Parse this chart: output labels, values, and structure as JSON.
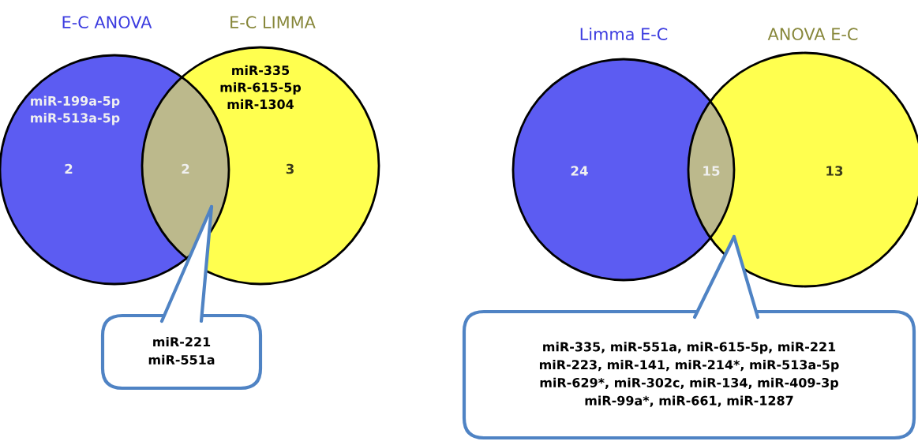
{
  "chart_data": [
    {
      "type": "other",
      "categories": [
        "E-C ANOVA",
        null,
        "E-C LIMMA"
      ],
      "values": [
        2,
        2,
        3
      ],
      "data_labels": true,
      "colors": [
        "#5c5cf2",
        "#bcb98c",
        "#ffff4f"
      ],
      "annotations": [
        "miR-199a-5p\nmiR-513a-5p",
        "miR-335\nmiR-615-5p\nmiR-1304",
        "miR-221\nmiR-551a"
      ]
    },
    {
      "type": "other",
      "categories": [
        "Limma E-C",
        null,
        "ANOVA E-C"
      ],
      "values": [
        24,
        15,
        13
      ],
      "data_labels": true,
      "colors": [
        "#5c5cf2",
        "#bcb98c",
        "#ffff4f"
      ],
      "annotations": [
        "miR-335, miR-551a, miR-615-5p, miR-221\nmiR-223, miR-141, miR-214*, miR-513a-5p\nmiR-629*, miR-302c, miR-134, miR-409-3p\nmiR-99a*, miR-661, miR-1287"
      ]
    }
  ]
}
